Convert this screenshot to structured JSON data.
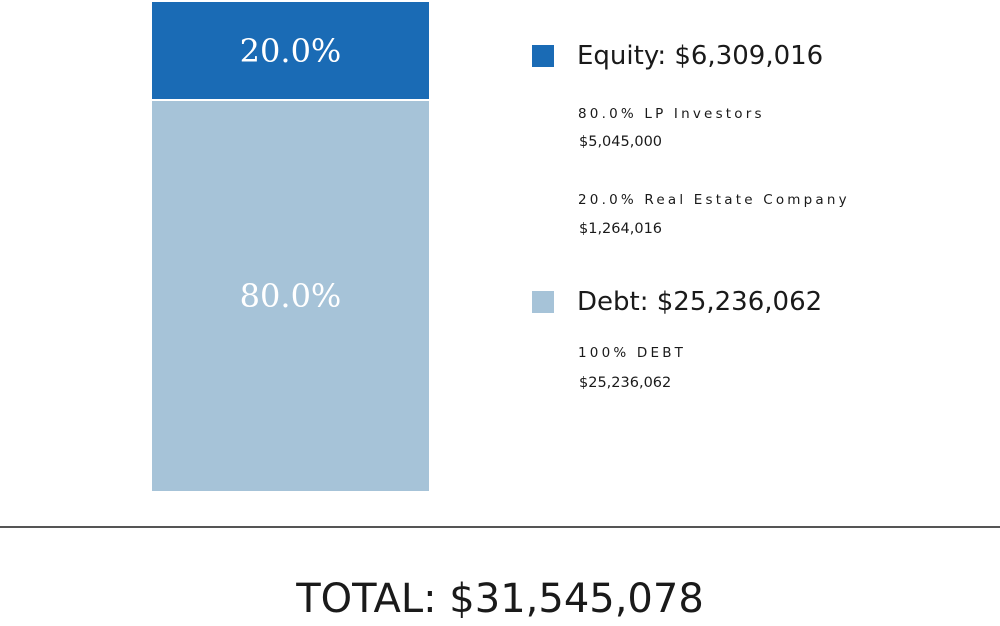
{
  "chart_data": {
    "type": "bar",
    "stacked": true,
    "categories": [
      ""
    ],
    "series": [
      {
        "name": "Equity",
        "values": [
          20.0
        ],
        "label": "20.0%",
        "color": "#1a6bb5"
      },
      {
        "name": "Debt",
        "values": [
          80.0
        ],
        "label": "80.0%",
        "color": "#a6c3d8"
      }
    ],
    "ylim": [
      0,
      100
    ],
    "legend": "right"
  },
  "legend": {
    "equity": {
      "title": "Equity: $6,309,016",
      "color": "#1a6bb5",
      "items": [
        {
          "label": "80.0% LP Investors",
          "amount": "$5,045,000"
        },
        {
          "label": "20.0% Real Estate Company",
          "amount": "$1,264,016"
        }
      ]
    },
    "debt": {
      "title": "Debt: $25,236,062",
      "color": "#a6c3d8",
      "items": [
        {
          "label": "100% DEBT",
          "amount": "$25,236,062"
        }
      ]
    }
  },
  "total": "TOTAL: $31,545,078"
}
